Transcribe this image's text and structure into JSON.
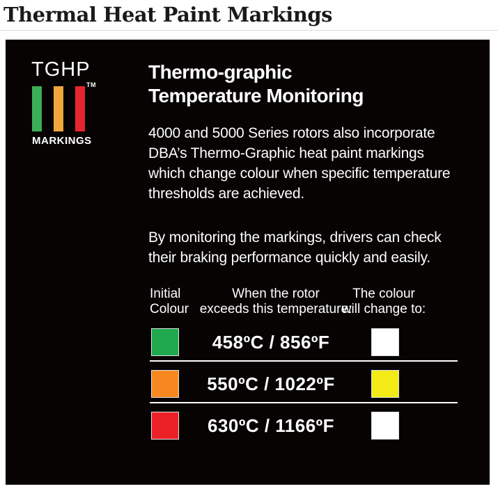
{
  "page": {
    "title": "Thermal Heat Paint Markings"
  },
  "panel": {
    "background": "#070303",
    "text_color": "#ffffff",
    "logo": {
      "wordmark": "TGHP",
      "trademark": "TM",
      "caption": "MARKINGS",
      "bars": [
        {
          "name": "green",
          "color": "#3baf55"
        },
        {
          "name": "amber",
          "color": "#f0a73e"
        },
        {
          "name": "red",
          "color": "#e6252e"
        }
      ]
    },
    "heading": {
      "line1": "Thermo-graphic",
      "line2": "Temperature Monitoring"
    },
    "paragraph1": {
      "lines": [
        "4000 and 5000 Series rotors also incorporate",
        "DBA’s Thermo-Graphic heat paint markings",
        "which change colour when specific temperature",
        "thresholds are achieved."
      ]
    },
    "paragraph2": {
      "lines": [
        "By monitoring the markings, drivers can check",
        "their braking performance quickly and easily."
      ]
    },
    "table": {
      "headers": {
        "initial": {
          "line1": "Initial",
          "line2": "Colour"
        },
        "temperature": {
          "line1": "When the rotor",
          "line2": "exceeds this temperature:"
        },
        "change": {
          "line1": "The colour",
          "line2": "will change to:"
        }
      },
      "rows": [
        {
          "initial_color_name": "green",
          "initial_color": "#20a84f",
          "temperature": "458ºC / 856ºF",
          "change_color_name": "white",
          "change_color": "#ffffff"
        },
        {
          "initial_color_name": "orange",
          "initial_color": "#f6881f",
          "temperature": "550ºC / 1022ºF",
          "change_color_name": "yellow",
          "change_color": "#f2eb16"
        },
        {
          "initial_color_name": "red",
          "initial_color": "#ec2127",
          "temperature": "630ºC / 1166ºF",
          "change_color_name": "white",
          "change_color": "#ffffff"
        }
      ]
    }
  }
}
